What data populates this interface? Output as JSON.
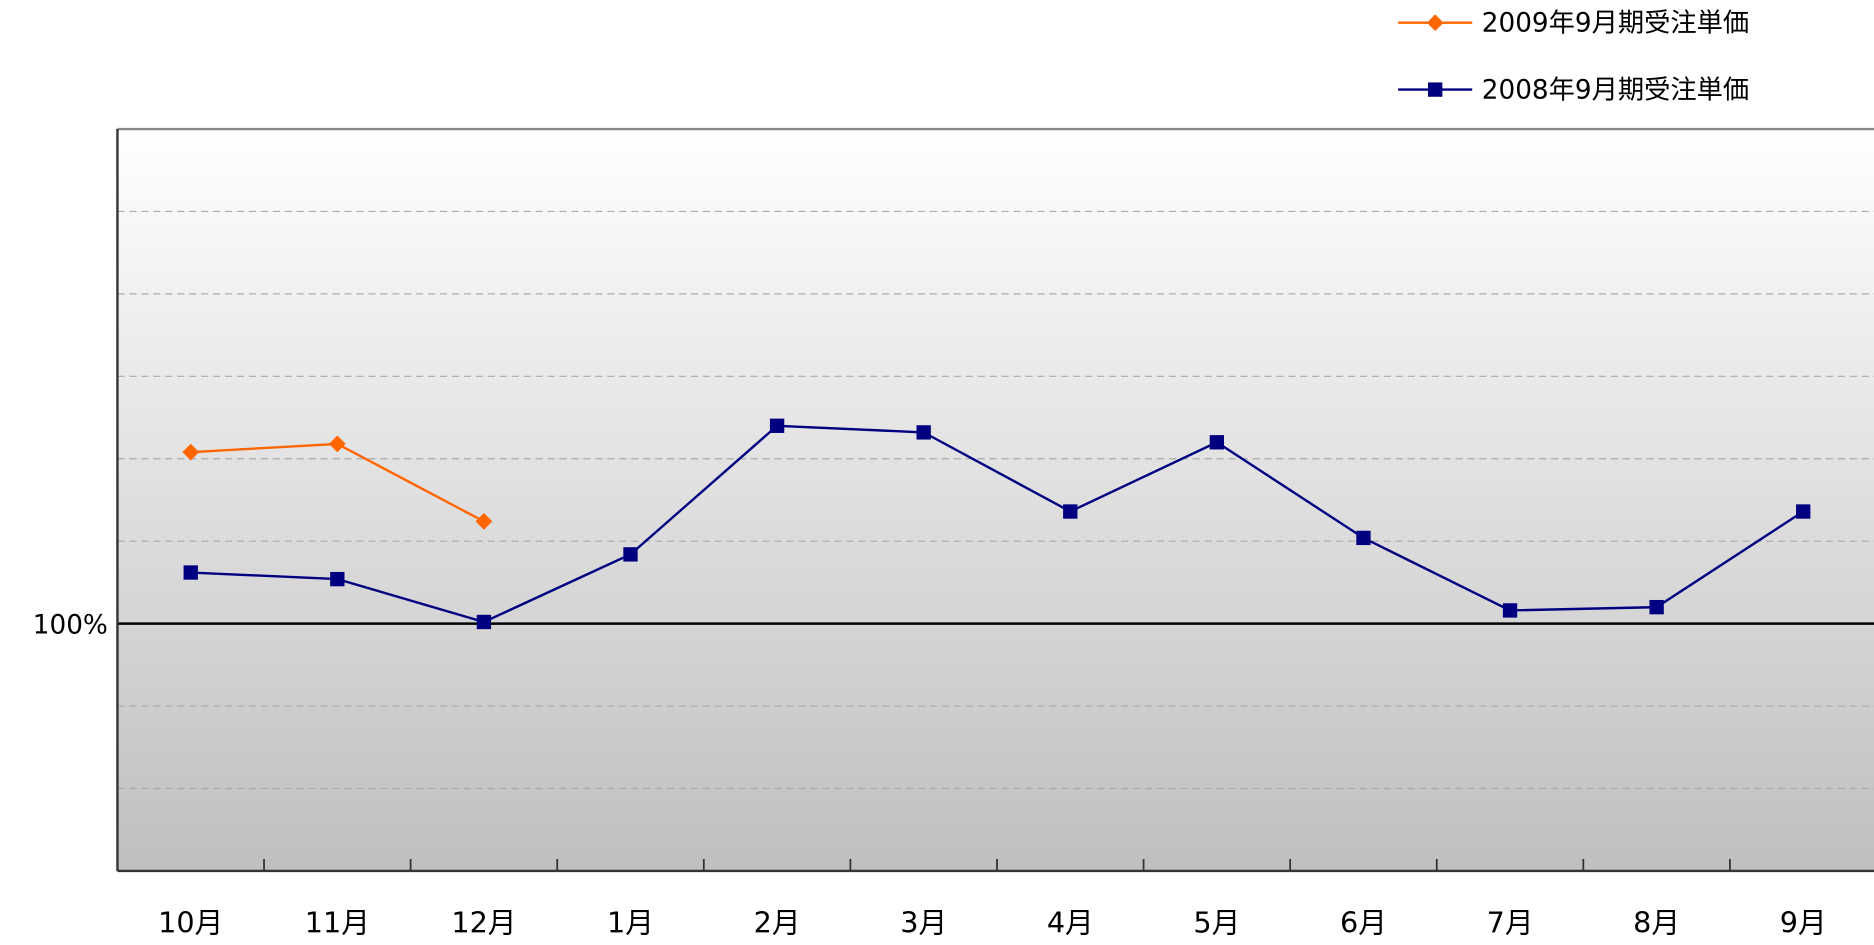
{
  "chart_data": {
    "type": "line",
    "categories": [
      "10月",
      "11月",
      "12月",
      "1月",
      "2月",
      "3月",
      "4月",
      "5月",
      "6月",
      "7月",
      "8月",
      "9月"
    ],
    "series": [
      {
        "name": "2009年9月期受注単価",
        "color": "#ff6600",
        "marker": "diamond",
        "values": [
          110.4,
          110.9,
          106.2,
          null,
          null,
          null,
          null,
          null,
          null,
          null,
          null,
          null
        ]
      },
      {
        "name": "2008年9月期受注単価",
        "color": "#000080",
        "marker": "square",
        "values": [
          103.1,
          102.7,
          100.1,
          104.2,
          112.0,
          111.6,
          106.8,
          111.0,
          105.2,
          100.8,
          101.0,
          106.8
        ]
      }
    ],
    "ylim": [
      85,
      130
    ],
    "yticks": [
      {
        "value": 100,
        "label": "100%"
      }
    ],
    "grid_lines": [
      90,
      95,
      105,
      110,
      115,
      120,
      125
    ],
    "grid": true,
    "legend": "top-right"
  }
}
